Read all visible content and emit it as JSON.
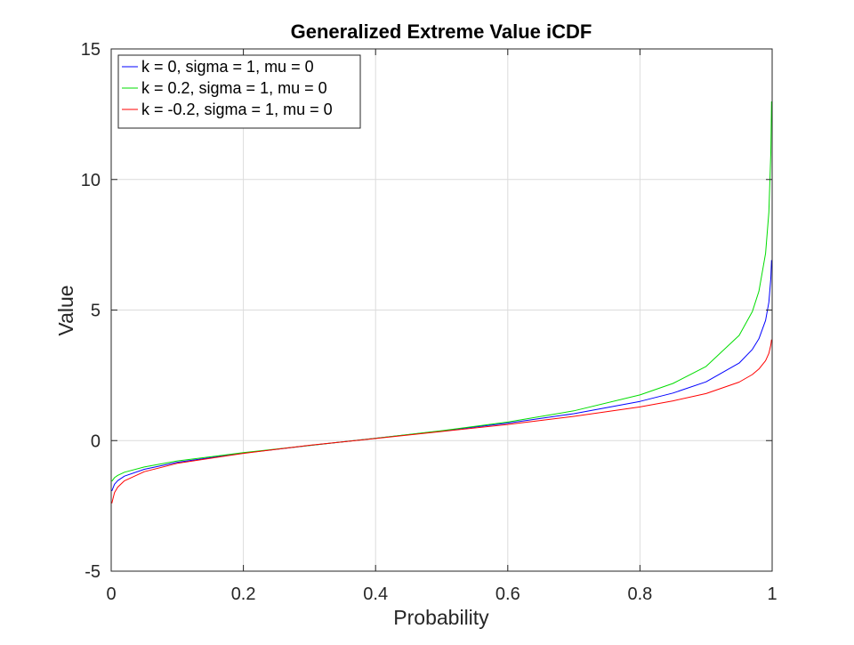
{
  "chart_data": {
    "type": "line",
    "title": "Generalized Extreme Value iCDF",
    "xlabel": "Probability",
    "ylabel": "Value",
    "xlim": [
      0,
      1
    ],
    "ylim": [
      -5,
      15
    ],
    "xticks": [
      "0",
      "0.2",
      "0.4",
      "0.6",
      "0.8",
      "1"
    ],
    "yticks": [
      "-5",
      "0",
      "5",
      "10",
      "15"
    ],
    "grid": true,
    "legend_position": "top-left",
    "series": [
      {
        "name": "k = 0, sigma = 1, mu = 0",
        "color": "#0000ff",
        "x": [
          0.001,
          0.005,
          0.01,
          0.02,
          0.05,
          0.1,
          0.2,
          0.3,
          0.4,
          0.5,
          0.6,
          0.7,
          0.8,
          0.85,
          0.9,
          0.95,
          0.97,
          0.98,
          0.99,
          0.995,
          0.998,
          0.999
        ],
        "y": [
          -1.93,
          -1.67,
          -1.53,
          -1.36,
          -1.1,
          -0.83,
          -0.48,
          -0.19,
          0.09,
          0.37,
          0.67,
          1.03,
          1.5,
          1.82,
          2.25,
          2.97,
          3.49,
          3.9,
          4.6,
          5.3,
          6.21,
          6.91
        ]
      },
      {
        "name": "k = 0.2, sigma = 1, mu = 0",
        "color": "#00dd00",
        "x": [
          0.001,
          0.005,
          0.01,
          0.02,
          0.05,
          0.1,
          0.2,
          0.3,
          0.4,
          0.5,
          0.6,
          0.7,
          0.8,
          0.85,
          0.9,
          0.95,
          0.97,
          0.98,
          0.99,
          0.995,
          0.998,
          0.999
        ],
        "y": [
          -1.56,
          -1.42,
          -1.33,
          -1.21,
          -1.01,
          -0.78,
          -0.46,
          -0.19,
          0.09,
          0.38,
          0.71,
          1.14,
          1.75,
          2.19,
          2.84,
          4.03,
          4.94,
          5.72,
          7.17,
          8.75,
          11.02,
          12.99
        ]
      },
      {
        "name": "k = -0.2, sigma = 1, mu = 0",
        "color": "#ff0000",
        "x": [
          0.001,
          0.005,
          0.01,
          0.02,
          0.05,
          0.1,
          0.2,
          0.3,
          0.4,
          0.5,
          0.6,
          0.7,
          0.8,
          0.85,
          0.9,
          0.95,
          0.97,
          0.98,
          0.99,
          0.995,
          0.998,
          0.999
        ],
        "y": [
          -2.4,
          -1.99,
          -1.78,
          -1.54,
          -1.19,
          -0.87,
          -0.49,
          -0.18,
          0.08,
          0.35,
          0.62,
          0.93,
          1.29,
          1.52,
          1.8,
          2.24,
          2.53,
          2.74,
          3.06,
          3.34,
          3.66,
          3.87
        ]
      }
    ]
  }
}
